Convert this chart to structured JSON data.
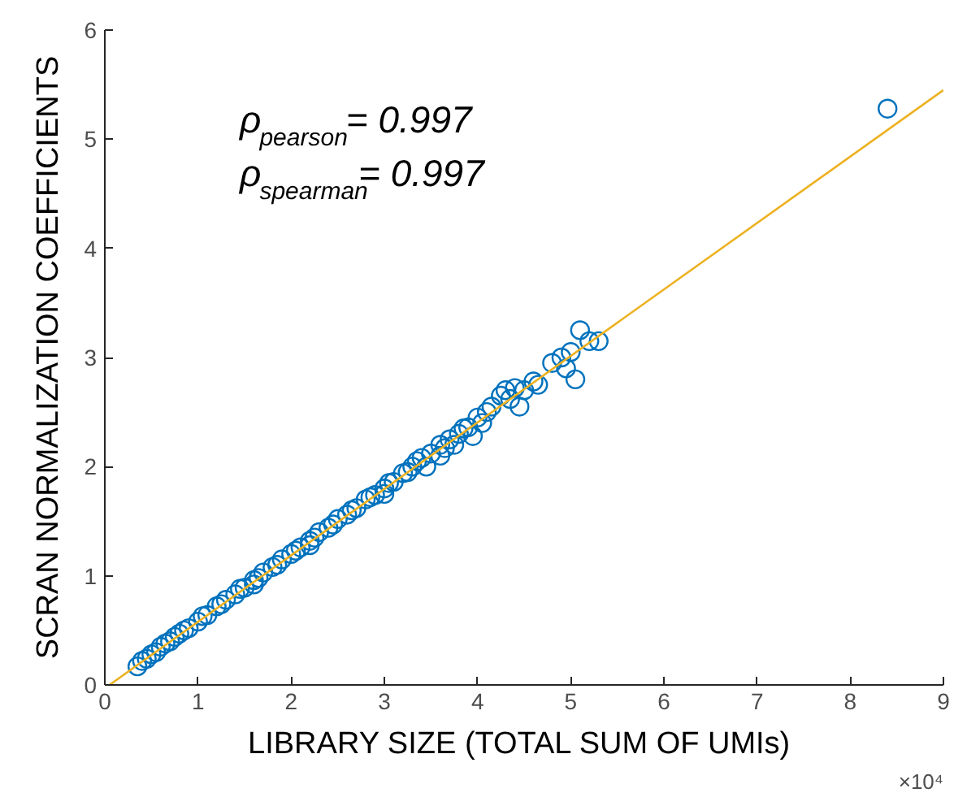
{
  "chart_data": {
    "type": "scatter",
    "xlabel": "LIBRARY SIZE (TOTAL SUM OF  UMIs)",
    "ylabel": "SCRAN NORMALIZATION COEFFICIENTS",
    "xlim": [
      0,
      9
    ],
    "ylim": [
      0,
      6
    ],
    "xticks": [
      0,
      1,
      2,
      3,
      4,
      5,
      6,
      7,
      8,
      9
    ],
    "yticks": [
      0,
      1,
      2,
      3,
      4,
      5,
      6
    ],
    "grid": false,
    "annotations": [
      "ρ$_{pearson}$= 0.997",
      "ρ$_{spearman}$= 0.997",
      "×10⁴"
    ],
    "series": [
      {
        "marker": "circle",
        "color": "#0072bd",
        "x": [
          0.35,
          0.4,
          0.45,
          0.5,
          0.55,
          0.6,
          0.65,
          0.7,
          0.75,
          0.8,
          0.85,
          0.9,
          1.0,
          1.05,
          1.1,
          1.2,
          1.25,
          1.3,
          1.4,
          1.45,
          1.5,
          1.6,
          1.6,
          1.65,
          1.7,
          1.8,
          1.85,
          1.9,
          2.0,
          2.05,
          2.1,
          2.2,
          2.2,
          2.25,
          2.3,
          2.4,
          2.45,
          2.5,
          2.6,
          2.65,
          2.7,
          2.8,
          2.85,
          2.9,
          3.0,
          3.0,
          3.05,
          3.1,
          3.2,
          3.25,
          3.3,
          3.35,
          3.4,
          3.45,
          3.5,
          3.6,
          3.6,
          3.65,
          3.7,
          3.75,
          3.8,
          3.85,
          3.9,
          3.95,
          4.0,
          4.05,
          4.1,
          4.15,
          4.25,
          4.3,
          4.35,
          4.4,
          4.45,
          4.5,
          4.6,
          4.65,
          4.8,
          4.9,
          4.95,
          5.0,
          5.05,
          5.1,
          5.2,
          5.3,
          8.4
        ],
        "values": [
          0.17,
          0.22,
          0.24,
          0.28,
          0.3,
          0.35,
          0.38,
          0.4,
          0.44,
          0.47,
          0.5,
          0.52,
          0.58,
          0.63,
          0.64,
          0.72,
          0.74,
          0.78,
          0.83,
          0.88,
          0.89,
          0.96,
          0.92,
          0.98,
          1.03,
          1.08,
          1.1,
          1.15,
          1.2,
          1.23,
          1.26,
          1.32,
          1.28,
          1.35,
          1.4,
          1.44,
          1.47,
          1.52,
          1.56,
          1.6,
          1.62,
          1.7,
          1.72,
          1.74,
          1.8,
          1.75,
          1.85,
          1.86,
          1.94,
          1.95,
          2.0,
          2.05,
          2.08,
          2.0,
          2.12,
          2.2,
          2.1,
          2.17,
          2.25,
          2.2,
          2.3,
          2.35,
          2.36,
          2.28,
          2.45,
          2.4,
          2.5,
          2.55,
          2.65,
          2.7,
          2.62,
          2.72,
          2.55,
          2.7,
          2.78,
          2.75,
          2.95,
          3.0,
          2.9,
          3.05,
          2.8,
          3.25,
          3.15,
          3.15,
          5.28
        ]
      },
      {
        "type": "line",
        "line_style": "solid",
        "color": "#edb120",
        "x": [
          0.05,
          9
        ],
        "values": [
          0,
          5.45
        ]
      }
    ]
  }
}
